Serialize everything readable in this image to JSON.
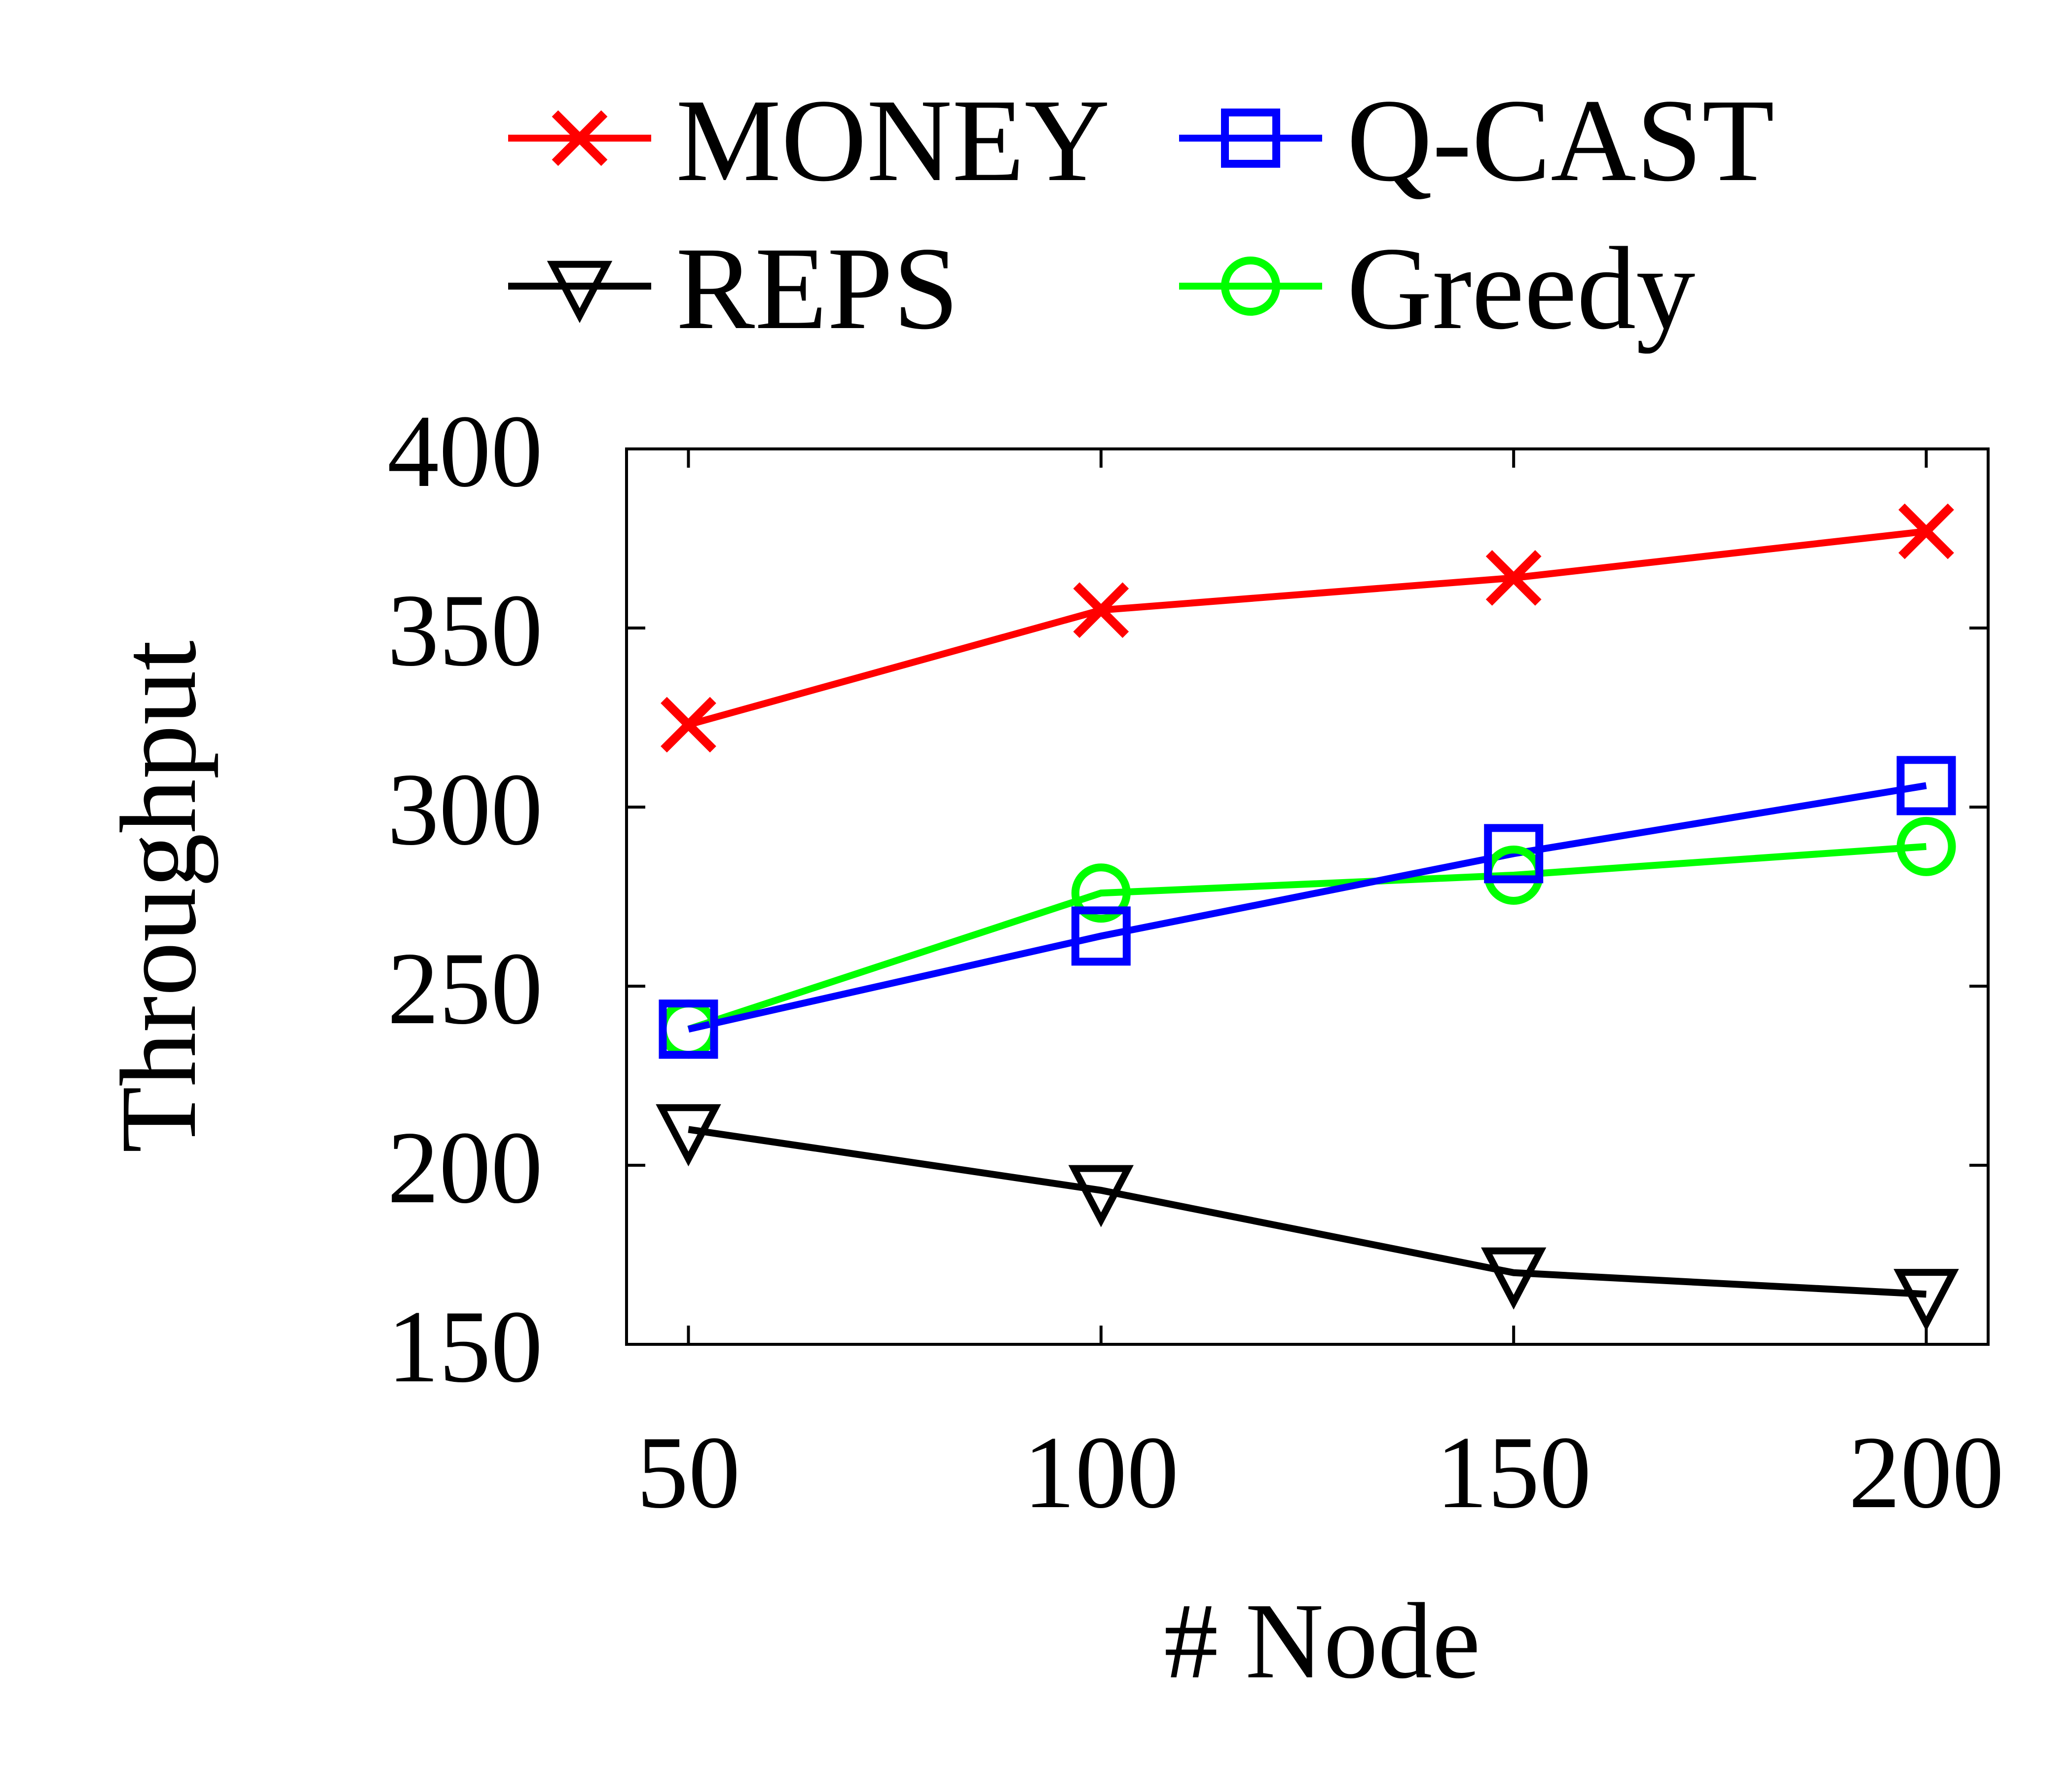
{
  "chart_data": {
    "type": "line",
    "title": "",
    "xlabel": "# Node",
    "ylabel": "Throughput",
    "x": [
      50,
      100,
      150,
      200
    ],
    "xlim": [
      42.5,
      207.5
    ],
    "ylim": [
      150,
      400
    ],
    "xticks": [
      50,
      100,
      150,
      200
    ],
    "yticks": [
      150,
      200,
      250,
      300,
      350,
      400
    ],
    "grid": false,
    "legend_position": "top",
    "series": [
      {
        "name": "MONEY",
        "color": "#ff0000",
        "marker": "x",
        "values": [
          323,
          355,
          364,
          377
        ]
      },
      {
        "name": "Q-CAST",
        "color": "#0000ff",
        "marker": "square",
        "values": [
          238,
          264,
          287,
          306
        ]
      },
      {
        "name": "REPS",
        "color": "#000000",
        "marker": "triangle-down",
        "values": [
          210,
          193,
          170,
          164
        ]
      },
      {
        "name": "Greedy",
        "color": "#00ff00",
        "marker": "circle",
        "values": [
          238,
          276,
          281,
          289
        ]
      }
    ]
  }
}
